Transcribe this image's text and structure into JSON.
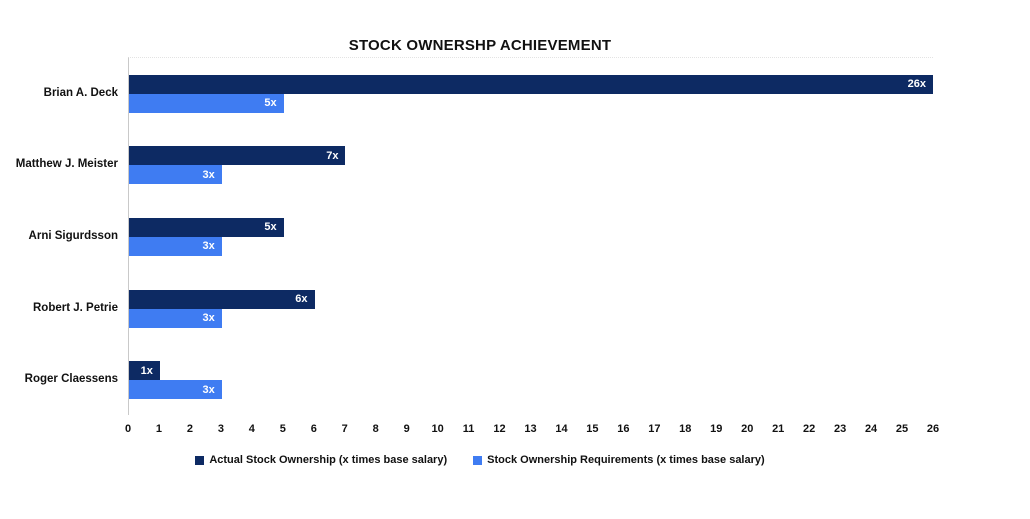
{
  "page": {
    "background_color": "#ffffff"
  },
  "chart_data": {
    "type": "bar",
    "orientation": "horizontal",
    "title": "STOCK OWNERSHP ACHIEVEMENT",
    "categories": [
      "Brian A. Deck",
      "Matthew J. Meister",
      "Arni Sigurdsson",
      "Robert J. Petrie",
      "Roger Claessens"
    ],
    "series": [
      {
        "name": "Actual Stock Ownership (x times base salary)",
        "color": "#0d2a63",
        "values": [
          26,
          7,
          5,
          6,
          1
        ],
        "labels": [
          "26x",
          "7x",
          "5x",
          "6x",
          "1x"
        ]
      },
      {
        "name": "Stock Ownership Requirements (x times base salary)",
        "color": "#3f7cf2",
        "values": [
          5,
          3,
          3,
          3,
          3
        ],
        "labels": [
          "5x",
          "3x",
          "3x",
          "3x",
          "3x"
        ]
      }
    ],
    "xlim": [
      0,
      26
    ],
    "x_ticks": [
      0,
      1,
      2,
      3,
      4,
      5,
      6,
      7,
      8,
      9,
      10,
      11,
      12,
      13,
      14,
      15,
      16,
      17,
      18,
      19,
      20,
      21,
      22,
      23,
      24,
      25,
      26
    ],
    "grid": false,
    "legend_position": "bottom",
    "value_label_color": "#ffffff",
    "axis_line_color": "#c9c9c9"
  }
}
